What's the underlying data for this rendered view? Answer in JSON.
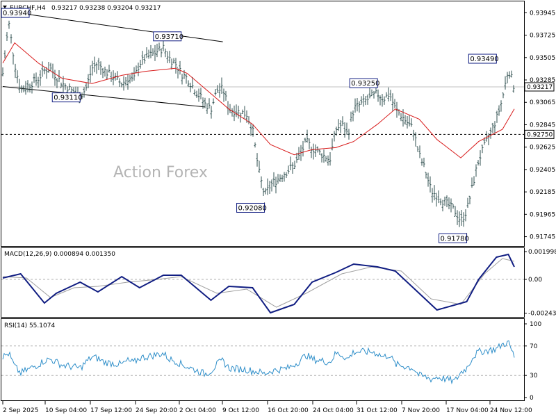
{
  "header": {
    "symbol": "EURCHF,H4",
    "ohlc": "0.93217 0.93238 0.93204 0.93217"
  },
  "watermark": "Action Forex",
  "colors": {
    "bar": "#2f4f4f",
    "ma": "#d81b1b",
    "macd": "#101d82",
    "signal": "#a0a0a0",
    "rsi": "#2e8ec9",
    "level_box": "#101d82"
  },
  "chart_data": [
    {
      "type": "ohlc",
      "title": "EURCHF,H4",
      "ylim": [
        0.9166,
        0.9405
      ],
      "y_ticks": [
        "0.93945",
        "0.93725",
        "0.93505",
        "0.93285",
        "0.93065",
        "0.92845",
        "0.92625",
        "0.92405",
        "0.92185",
        "0.91965",
        "0.91745"
      ],
      "current_price": "0.93217",
      "horizontal_level": "0.92750",
      "annotations": [
        {
          "label": "0.93940",
          "date": "3 Sep 2025"
        },
        {
          "label": "0.93710",
          "date": "2 Oct 2025"
        },
        {
          "label": "0.93110",
          "date": "15 Sep 2025"
        },
        {
          "label": "0.92080",
          "date": "16 Oct 2025"
        },
        {
          "label": "0.93250",
          "date": "4 Nov 2025"
        },
        {
          "label": "0.91780",
          "date": "19 Nov 2025"
        },
        {
          "label": "0.93490",
          "date": "24 Nov 2025"
        }
      ],
      "close_path": [
        [
          "2 Sep 2025",
          0.9335
        ],
        [
          "3 Sep 2025",
          0.9385
        ],
        [
          "4 Sep 2025",
          0.9345
        ],
        [
          "5 Sep 2025",
          0.9318
        ],
        [
          "8 Sep 2025",
          0.933
        ],
        [
          "9 Sep 2025",
          0.9338
        ],
        [
          "10 Sep 2025",
          0.934
        ],
        [
          "11 Sep 2025",
          0.9332
        ],
        [
          "12 Sep 2025",
          0.9325
        ],
        [
          "15 Sep 2025",
          0.9312
        ],
        [
          "16 Sep 2025",
          0.932
        ],
        [
          "17 Sep 2025",
          0.934
        ],
        [
          "18 Sep 2025",
          0.9345
        ],
        [
          "19 Sep 2025",
          0.9338
        ],
        [
          "22 Sep 2025",
          0.9325
        ],
        [
          "23 Sep 2025",
          0.933
        ],
        [
          "24 Sep 2025",
          0.9328
        ],
        [
          "25 Sep 2025",
          0.9345
        ],
        [
          "26 Sep 2025",
          0.935
        ],
        [
          "29 Sep 2025",
          0.936
        ],
        [
          "30 Sep 2025",
          0.935
        ],
        [
          "1 Oct 2025",
          0.9345
        ],
        [
          "2 Oct 2025",
          0.9335
        ],
        [
          "3 Oct 2025",
          0.933
        ],
        [
          "6 Oct 2025",
          0.9305
        ],
        [
          "7 Oct 2025",
          0.93
        ],
        [
          "8 Oct 2025",
          0.9318
        ],
        [
          "9 Oct 2025",
          0.932
        ],
        [
          "10 Oct 2025",
          0.93
        ],
        [
          "13 Oct 2025",
          0.9295
        ],
        [
          "14 Oct 2025",
          0.928
        ],
        [
          "15 Oct 2025",
          0.924
        ],
        [
          "16 Oct 2025",
          0.9215
        ],
        [
          "17 Oct 2025",
          0.9225
        ],
        [
          "20 Oct 2025",
          0.924
        ],
        [
          "21 Oct 2025",
          0.9245
        ],
        [
          "22 Oct 2025",
          0.9255
        ],
        [
          "23 Oct 2025",
          0.9268
        ],
        [
          "24 Oct 2025",
          0.9262
        ],
        [
          "27 Oct 2025",
          0.925
        ],
        [
          "28 Oct 2025",
          0.928
        ],
        [
          "29 Oct 2025",
          0.9285
        ],
        [
          "30 Oct 2025",
          0.9275
        ],
        [
          "31 Oct 2025",
          0.93
        ],
        [
          "3 Nov 2025",
          0.9312
        ],
        [
          "4 Nov 2025",
          0.9315
        ],
        [
          "5 Nov 2025",
          0.931
        ],
        [
          "6 Nov 2025",
          0.9315
        ],
        [
          "7 Nov 2025",
          0.93
        ],
        [
          "10 Nov 2025",
          0.928
        ],
        [
          "11 Nov 2025",
          0.9255
        ],
        [
          "12 Nov 2025",
          0.924
        ],
        [
          "13 Nov 2025",
          0.922
        ],
        [
          "14 Nov 2025",
          0.9215
        ],
        [
          "17 Nov 2025",
          0.92
        ],
        [
          "18 Nov 2025",
          0.919
        ],
        [
          "19 Nov 2025",
          0.92
        ],
        [
          "20 Nov 2025",
          0.9225
        ],
        [
          "21 Nov 2025",
          0.925
        ],
        [
          "24 Nov 2025",
          0.929
        ],
        [
          "25 Nov 2025",
          0.931
        ],
        [
          "26 Nov 2025",
          0.934
        ],
        [
          "27 Nov 2025",
          0.9321
        ]
      ],
      "ma_path": [
        [
          "2 Sep 2025",
          0.9345
        ],
        [
          "4 Sep 2025",
          0.9365
        ],
        [
          "8 Sep 2025",
          0.9345
        ],
        [
          "12 Sep 2025",
          0.933
        ],
        [
          "17 Sep 2025",
          0.9325
        ],
        [
          "22 Sep 2025",
          0.9333
        ],
        [
          "26 Sep 2025",
          0.9337
        ],
        [
          "1 Oct 2025",
          0.934
        ],
        [
          "3 Oct 2025",
          0.9335
        ],
        [
          "7 Oct 2025",
          0.9315
        ],
        [
          "10 Oct 2025",
          0.93
        ],
        [
          "14 Oct 2025",
          0.9285
        ],
        [
          "17 Oct 2025",
          0.9265
        ],
        [
          "21 Oct 2025",
          0.9255
        ],
        [
          "24 Oct 2025",
          0.926
        ],
        [
          "28 Oct 2025",
          0.9262
        ],
        [
          "31 Oct 2025",
          0.9268
        ],
        [
          "4 Nov 2025",
          0.9285
        ],
        [
          "7 Nov 2025",
          0.93
        ],
        [
          "11 Nov 2025",
          0.929
        ],
        [
          "14 Nov 2025",
          0.927
        ],
        [
          "18 Nov 2025",
          0.9252
        ],
        [
          "21 Nov 2025",
          0.9268
        ],
        [
          "25 Nov 2025",
          0.928
        ],
        [
          "27 Nov 2025",
          0.93
        ]
      ],
      "trendlines": [
        {
          "from": [
            "5 Sep 2025",
            0.9394
          ],
          "to": [
            "9 Oct 2025",
            0.9366
          ]
        },
        {
          "from": [
            "2 Sep 2025",
            0.9322
          ],
          "to": [
            "6 Oct 2025",
            0.9302
          ]
        }
      ]
    },
    {
      "type": "line",
      "title": "MACD(12,26,9) 0.000894 0.001350",
      "y_ticks": [
        "0.001998",
        "0.00",
        "-0.002434"
      ],
      "ylim": [
        -0.00265,
        0.0022
      ],
      "series": [
        {
          "name": "MACD",
          "values": [
            [
              "2 Sep 2025",
              0.0001
            ],
            [
              "5 Sep 2025",
              0.0004
            ],
            [
              "9 Sep 2025",
              -0.0017
            ],
            [
              "11 Sep 2025",
              -0.001
            ],
            [
              "15 Sep 2025",
              -0.0002
            ],
            [
              "18 Sep 2025",
              -0.0009
            ],
            [
              "22 Sep 2025",
              0.0002
            ],
            [
              "25 Sep 2025",
              -0.0006
            ],
            [
              "29 Sep 2025",
              0.0003
            ],
            [
              "2 Oct 2025",
              0.0003
            ],
            [
              "7 Oct 2025",
              -0.0015
            ],
            [
              "10 Oct 2025",
              -0.0005
            ],
            [
              "14 Oct 2025",
              -0.0006
            ],
            [
              "17 Oct 2025",
              -0.0024
            ],
            [
              "21 Oct 2025",
              -0.0018
            ],
            [
              "24 Oct 2025",
              -0.0002
            ],
            [
              "28 Oct 2025",
              0.0005
            ],
            [
              "31 Oct 2025",
              0.0011
            ],
            [
              "4 Nov 2025",
              0.0009
            ],
            [
              "7 Nov 2025",
              0.0006
            ],
            [
              "11 Nov 2025",
              -0.001
            ],
            [
              "14 Nov 2025",
              -0.0022
            ],
            [
              "19 Nov 2025",
              -0.0016
            ],
            [
              "21 Nov 2025",
              0.0
            ],
            [
              "24 Nov 2025",
              0.0016
            ],
            [
              "26 Nov 2025",
              0.0018
            ],
            [
              "27 Nov 2025",
              0.0009
            ]
          ]
        },
        {
          "name": "Signal",
          "values": [
            [
              "2 Sep 2025",
              0.0002
            ],
            [
              "6 Sep 2025",
              0.0001
            ],
            [
              "10 Sep 2025",
              -0.0013
            ],
            [
              "14 Sep 2025",
              -0.0006
            ],
            [
              "18 Sep 2025",
              -0.0005
            ],
            [
              "23 Sep 2025",
              -0.0002
            ],
            [
              "28 Sep 2025",
              0.0
            ],
            [
              "2 Oct 2025",
              0.0002
            ],
            [
              "8 Oct 2025",
              -0.001
            ],
            [
              "13 Oct 2025",
              -0.0007
            ],
            [
              "18 Oct 2025",
              -0.002
            ],
            [
              "23 Oct 2025",
              -0.001
            ],
            [
              "29 Oct 2025",
              0.0004
            ],
            [
              "3 Nov 2025",
              0.0009
            ],
            [
              "8 Nov 2025",
              0.0006
            ],
            [
              "13 Nov 2025",
              -0.0014
            ],
            [
              "18 Nov 2025",
              -0.0018
            ],
            [
              "22 Nov 2025",
              0.0004
            ],
            [
              "25 Nov 2025",
              0.0015
            ],
            [
              "27 Nov 2025",
              0.0013
            ]
          ]
        }
      ]
    },
    {
      "type": "line",
      "title": "RSI(14) 55.1074",
      "y_ticks": [
        "100",
        "70",
        "30",
        "0"
      ],
      "ylim": [
        0,
        100
      ],
      "levels": [
        70,
        30
      ],
      "series": [
        {
          "name": "RSI(14)",
          "values": [
            [
              "2 Sep 2025",
              55
            ],
            [
              "3 Sep 2025",
              60
            ],
            [
              "4 Sep 2025",
              42
            ],
            [
              "5 Sep 2025",
              33
            ],
            [
              "8 Sep 2025",
              45
            ],
            [
              "9 Sep 2025",
              50
            ],
            [
              "10 Sep 2025",
              52
            ],
            [
              "11 Sep 2025",
              48
            ],
            [
              "12 Sep 2025",
              44
            ],
            [
              "15 Sep 2025",
              40
            ],
            [
              "16 Sep 2025",
              48
            ],
            [
              "17 Sep 2025",
              55
            ],
            [
              "18 Sep 2025",
              53
            ],
            [
              "19 Sep 2025",
              48
            ],
            [
              "22 Sep 2025",
              45
            ],
            [
              "23 Sep 2025",
              50
            ],
            [
              "24 Sep 2025",
              47
            ],
            [
              "25 Sep 2025",
              54
            ],
            [
              "26 Sep 2025",
              55
            ],
            [
              "29 Sep 2025",
              60
            ],
            [
              "30 Sep 2025",
              52
            ],
            [
              "1 Oct 2025",
              50
            ],
            [
              "2 Oct 2025",
              45
            ],
            [
              "3 Oct 2025",
              42
            ],
            [
              "6 Oct 2025",
              32
            ],
            [
              "7 Oct 2025",
              36
            ],
            [
              "8 Oct 2025",
              45
            ],
            [
              "9 Oct 2025",
              50
            ],
            [
              "10 Oct 2025",
              40
            ],
            [
              "13 Oct 2025",
              38
            ],
            [
              "14 Oct 2025",
              36
            ],
            [
              "15 Oct 2025",
              35
            ],
            [
              "16 Oct 2025",
              32
            ],
            [
              "17 Oct 2025",
              36
            ],
            [
              "20 Oct 2025",
              40
            ],
            [
              "21 Oct 2025",
              45
            ],
            [
              "22 Oct 2025",
              50
            ],
            [
              "23 Oct 2025",
              58
            ],
            [
              "24 Oct 2025",
              52
            ],
            [
              "27 Oct 2025",
              48
            ],
            [
              "28 Oct 2025",
              60
            ],
            [
              "29 Oct 2025",
              58
            ],
            [
              "30 Oct 2025",
              52
            ],
            [
              "31 Oct 2025",
              62
            ],
            [
              "3 Nov 2025",
              62
            ],
            [
              "4 Nov 2025",
              60
            ],
            [
              "5 Nov 2025",
              55
            ],
            [
              "6 Nov 2025",
              58
            ],
            [
              "7 Nov 2025",
              45
            ],
            [
              "10 Nov 2025",
              40
            ],
            [
              "11 Nov 2025",
              30
            ],
            [
              "12 Nov 2025",
              28
            ],
            [
              "13 Nov 2025",
              25
            ],
            [
              "14 Nov 2025",
              28
            ],
            [
              "17 Nov 2025",
              22
            ],
            [
              "18 Nov 2025",
              34
            ],
            [
              "19 Nov 2025",
              40
            ],
            [
              "20 Nov 2025",
              55
            ],
            [
              "21 Nov 2025",
              62
            ],
            [
              "24 Nov 2025",
              66
            ],
            [
              "25 Nov 2025",
              72
            ],
            [
              "26 Nov 2025",
              75
            ],
            [
              "27 Nov 2025",
              55
            ]
          ]
        }
      ]
    }
  ],
  "x_axis_labels": [
    "2 Sep 2025",
    "10 Sep 04:00",
    "17 Sep 12:00",
    "24 Sep 20:00",
    "2 Oct 04:00",
    "9 Oct 12:00",
    "16 Oct 20:00",
    "24 Oct 04:00",
    "31 Oct 12:00",
    "7 Nov 20:00",
    "17 Nov 04:00",
    "24 Nov 12:00"
  ]
}
